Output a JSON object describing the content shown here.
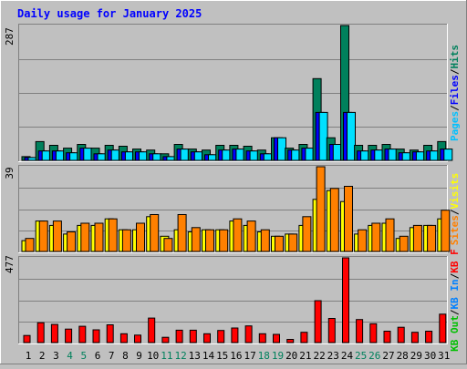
{
  "chart_data": [
    {
      "panel": "hits",
      "type": "bar",
      "title": "Daily usage for January 2025",
      "ymax_label": "287",
      "ymax": 287,
      "categories": [
        "1",
        "2",
        "3",
        "4",
        "5",
        "6",
        "7",
        "8",
        "9",
        "10",
        "11",
        "12",
        "13",
        "14",
        "15",
        "16",
        "17",
        "18",
        "19",
        "20",
        "21",
        "22",
        "23",
        "24",
        "25",
        "26",
        "27",
        "28",
        "29",
        "30",
        "31"
      ],
      "weekend_days": [
        "4",
        "5",
        "11",
        "12",
        "18",
        "19",
        "25",
        "26"
      ],
      "legend": [
        "Hits",
        "/",
        "Files",
        "/",
        "Pages"
      ],
      "series": [
        {
          "name": "Hits",
          "color": "#00805c",
          "values": [
            8,
            40,
            32,
            26,
            34,
            26,
            32,
            30,
            24,
            22,
            14,
            34,
            24,
            22,
            32,
            32,
            30,
            22,
            48,
            26,
            34,
            174,
            48,
            287,
            32,
            32,
            34,
            24,
            22,
            32,
            40
          ]
        },
        {
          "name": "Files",
          "color": "#0000ff",
          "values": [
            6,
            20,
            20,
            16,
            26,
            14,
            22,
            18,
            18,
            14,
            8,
            24,
            18,
            12,
            22,
            24,
            20,
            14,
            48,
            22,
            26,
            102,
            34,
            102,
            20,
            22,
            24,
            16,
            18,
            20,
            24
          ]
        },
        {
          "name": "Pages",
          "color": "#00e0ff",
          "values": [
            6,
            20,
            20,
            16,
            26,
            14,
            22,
            18,
            18,
            14,
            8,
            24,
            18,
            12,
            22,
            24,
            20,
            14,
            48,
            22,
            26,
            102,
            34,
            102,
            20,
            22,
            24,
            16,
            18,
            20,
            24
          ]
        }
      ]
    },
    {
      "panel": "sites",
      "type": "bar",
      "ymax_label": "39",
      "ymax": 39,
      "legend": [
        "Visits",
        "/",
        "Sites"
      ],
      "series": [
        {
          "name": "Visits",
          "color": "#ffff00",
          "values": [
            5,
            14,
            12,
            8,
            12,
            12,
            15,
            10,
            10,
            16,
            7,
            10,
            9,
            10,
            10,
            14,
            12,
            9,
            7,
            8,
            12,
            24,
            28,
            23,
            8,
            12,
            13,
            6,
            11,
            12,
            15
          ]
        },
        {
          "name": "Sites",
          "color": "#ff8000",
          "values": [
            6,
            14,
            14,
            9,
            13,
            13,
            15,
            10,
            13,
            17,
            6,
            17,
            11,
            10,
            10,
            15,
            14,
            10,
            7,
            8,
            16,
            39,
            29,
            30,
            10,
            13,
            15,
            7,
            12,
            12,
            19
          ]
        }
      ]
    },
    {
      "panel": "kbytes",
      "type": "bar",
      "ymax_label": "477",
      "ymax": 477,
      "legend": [
        "KB F",
        "/",
        "KB In",
        "/",
        "KB Out"
      ],
      "series": [
        {
          "name": "KB F",
          "color": "#ff0000",
          "values": [
            40,
            112,
            102,
            76,
            92,
            72,
            100,
            50,
            42,
            138,
            30,
            70,
            70,
            50,
            68,
            82,
            94,
            50,
            46,
            18,
            58,
            236,
            136,
            477,
            130,
            106,
            64,
            86,
            58,
            64,
            160
          ]
        }
      ]
    }
  ],
  "colors": {
    "background": "#c0c0c0",
    "panel": "#c0c0c0",
    "grid": "#808080",
    "title": "#0000ff",
    "weekend": "#00805c",
    "weekday": "#000000",
    "bar_outline": "#000000"
  }
}
